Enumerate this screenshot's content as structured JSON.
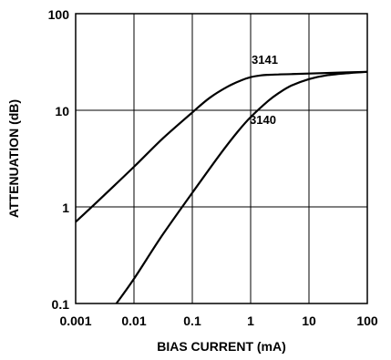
{
  "chart_data": {
    "type": "line",
    "title": "",
    "xlabel": "BIAS CURRENT (mA)",
    "ylabel": "ATTENUATION (dB)",
    "x_scale": "log",
    "y_scale": "log",
    "xlim": [
      0.001,
      100
    ],
    "ylim": [
      0.1,
      100
    ],
    "grid": true,
    "legend": "none",
    "x_ticks": [
      0.001,
      0.01,
      0.1,
      1,
      10,
      100
    ],
    "x_tick_labels": [
      "0.001",
      "0.01",
      "0.1",
      "1",
      "10",
      "100"
    ],
    "y_ticks": [
      0.1,
      1,
      10,
      100
    ],
    "y_tick_labels": [
      "0.1",
      "1",
      "10",
      "100"
    ],
    "series": [
      {
        "name": "3141",
        "x": [
          0.001,
          0.003,
          0.01,
          0.03,
          0.1,
          0.2,
          0.4,
          0.7,
          1,
          1.5,
          2,
          3,
          5,
          10,
          30,
          100
        ],
        "y": [
          0.7,
          1.3,
          2.6,
          5.0,
          9.5,
          13.5,
          17.5,
          20.5,
          22,
          23,
          23.3,
          23.5,
          23.7,
          24,
          24.5,
          25
        ]
      },
      {
        "name": "3140",
        "x": [
          0.005,
          0.01,
          0.03,
          0.1,
          0.3,
          0.6,
          1,
          2,
          3,
          5,
          10,
          20,
          50,
          100
        ],
        "y": [
          0.1,
          0.18,
          0.5,
          1.4,
          3.5,
          6.0,
          8.5,
          12.5,
          15.0,
          18.0,
          21.0,
          23.0,
          24.3,
          25
        ]
      }
    ]
  }
}
